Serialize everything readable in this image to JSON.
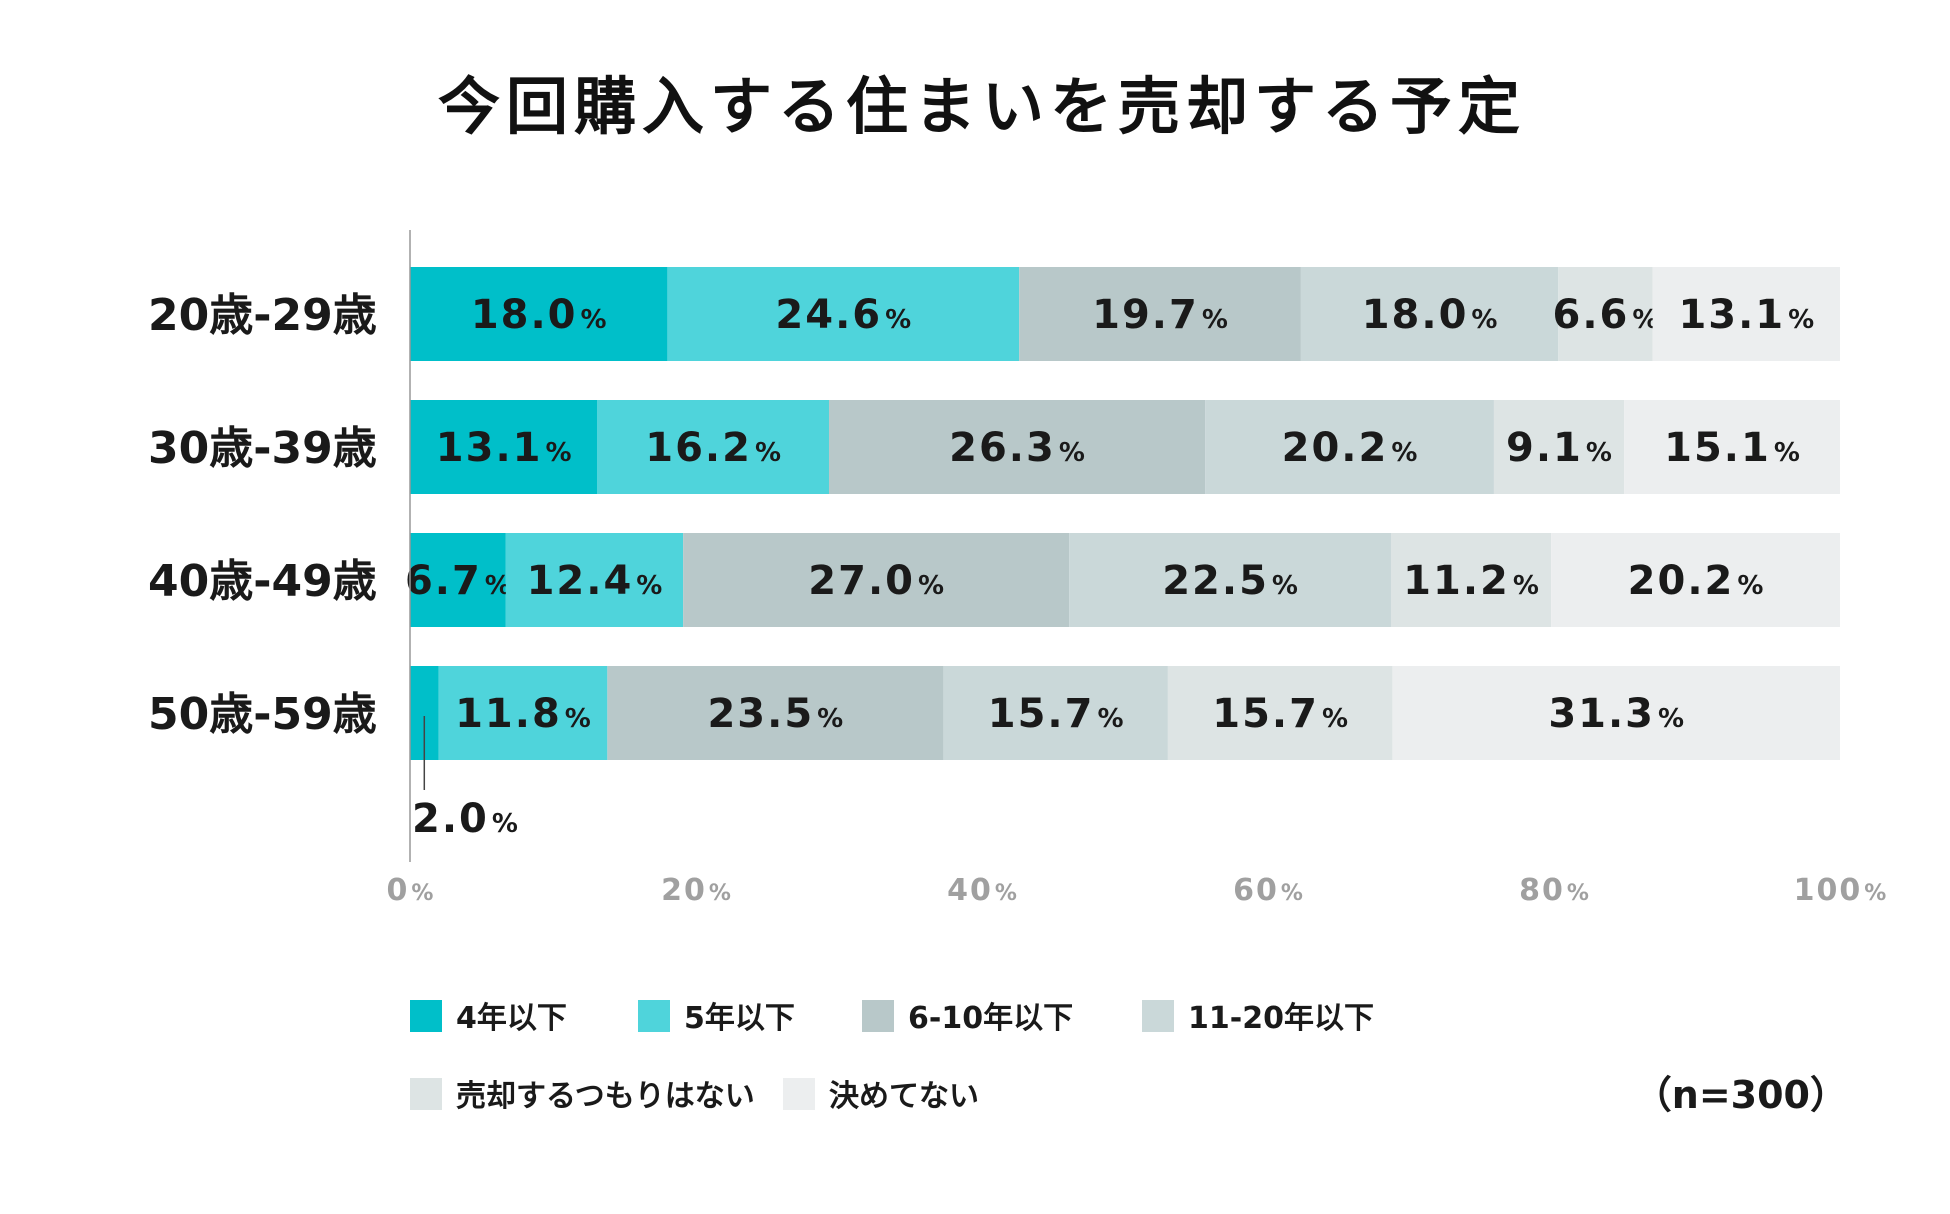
{
  "chart_data": {
    "type": "stacked-bar-horizontal",
    "title": "今回購入する住まいを売却する予定",
    "categories": [
      "20歳-29歳",
      "30歳-39歳",
      "40歳-49歳",
      "50歳-59歳"
    ],
    "series": [
      {
        "name": "4年以下",
        "color": "#00bfc9",
        "values": [
          18.0,
          13.1,
          6.7,
          2.0
        ],
        "labels": [
          "18.0",
          "13.1",
          "6.7",
          "2.0"
        ]
      },
      {
        "name": "5年以下",
        "color": "#4fd4db",
        "values": [
          24.6,
          16.2,
          12.4,
          11.8
        ],
        "labels": [
          "24.6",
          "16.2",
          "12.4",
          "11.8"
        ]
      },
      {
        "name": "6-10年以下",
        "color": "#b8c8c9",
        "values": [
          19.7,
          26.3,
          27.0,
          23.5
        ],
        "labels": [
          "19.7",
          "26.3",
          "27.0",
          "23.5"
        ]
      },
      {
        "name": "11-20年以下",
        "color": "#cad8d9",
        "values": [
          18.0,
          20.2,
          22.5,
          15.7
        ],
        "labels": [
          "18.0",
          "20.2",
          "22.5",
          "15.7"
        ]
      },
      {
        "name": "売却するつもりはない",
        "color": "#dde4e4",
        "values": [
          6.6,
          9.1,
          11.2,
          15.7
        ],
        "labels": [
          "6.6",
          "9.1",
          "11.2",
          "15.7"
        ]
      },
      {
        "name": "決めてない",
        "color": "#eceeef",
        "values": [
          13.1,
          15.1,
          20.2,
          31.3
        ],
        "labels": [
          "13.1",
          "15.1",
          "20.2",
          "31.3"
        ]
      }
    ],
    "xlim": [
      0,
      100
    ],
    "xticks": [
      "0",
      "20",
      "40",
      "60",
      "80",
      "100"
    ],
    "percent_sign": "%",
    "legend_position": "bottom",
    "note": "（n=300）"
  }
}
